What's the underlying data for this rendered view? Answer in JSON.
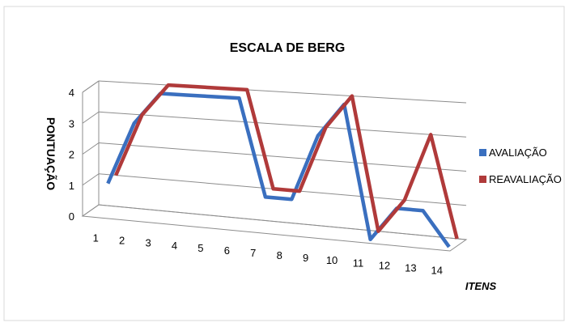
{
  "chart_data": {
    "type": "line",
    "title": "ESCALA DE BERG",
    "xlabel": "ITENS",
    "ylabel": "PONTUAÇÃO",
    "categories": [
      "1",
      "2",
      "3",
      "4",
      "5",
      "6",
      "7",
      "8",
      "9",
      "10",
      "11",
      "12",
      "13",
      "14"
    ],
    "y_ticks": [
      "0",
      "1",
      "2",
      "3",
      "4"
    ],
    "ylim": [
      0,
      4
    ],
    "grid": true,
    "legend_position": "right",
    "series": [
      {
        "name": "AVALIAÇÃO",
        "color": "#3a6fbf",
        "values": [
          1,
          3,
          4,
          4,
          4,
          4,
          1,
          1,
          3,
          4,
          0,
          1,
          1,
          0
        ]
      },
      {
        "name": "REAVALIAÇÃO",
        "color": "#b03a3a",
        "values": [
          1,
          3,
          4,
          4,
          4,
          4,
          1,
          1,
          3,
          4,
          0,
          1,
          3,
          0
        ]
      }
    ]
  }
}
